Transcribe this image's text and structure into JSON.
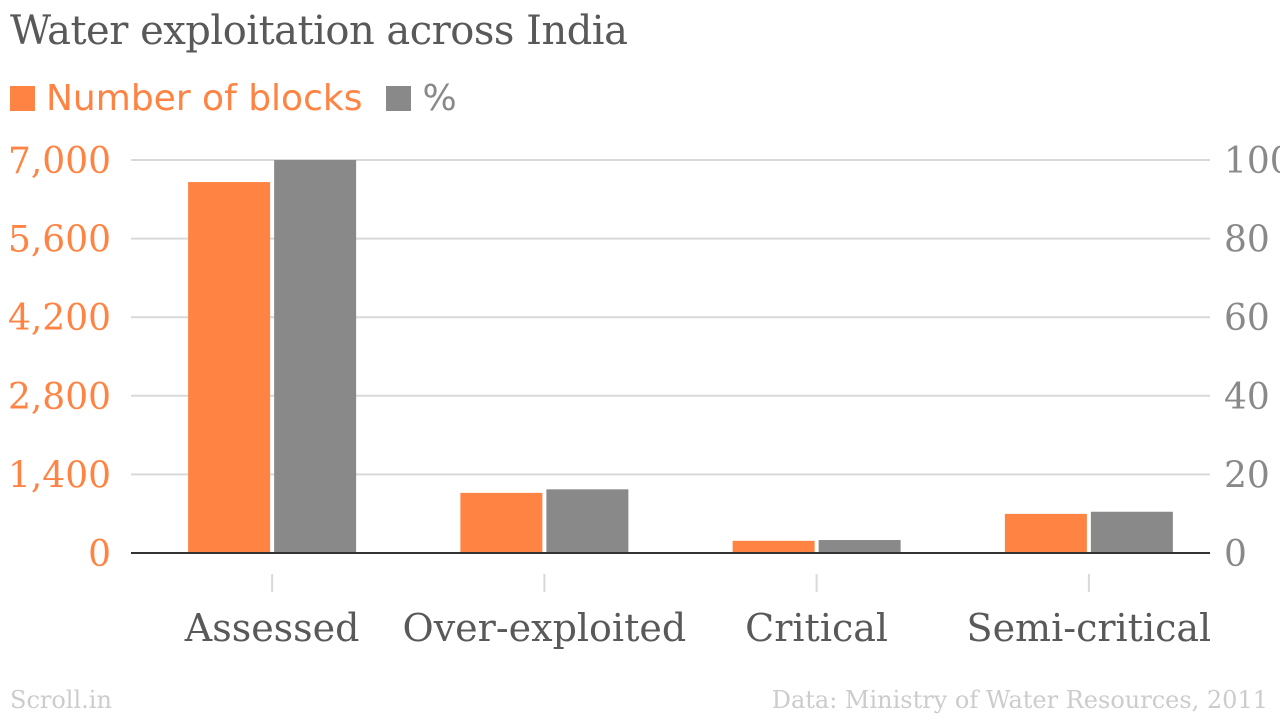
{
  "title": "Water exploitation across India",
  "source_left": "Scroll.in",
  "source_right": "Data: Ministry of Water Resources, 2011",
  "colors": {
    "blocks": "#ff8342",
    "percent": "#898989",
    "title": "#595959",
    "footer": "#cccccc",
    "grid": "#d9d9d9",
    "axis": "#333333"
  },
  "chart_data": {
    "type": "bar",
    "categories": [
      "Assessed",
      "Over-exploited",
      "Critical",
      "Semi-critical"
    ],
    "series": [
      {
        "name": "Number of blocks",
        "values": [
          6607,
          1071,
          217,
          697
        ],
        "axis": "left"
      },
      {
        "name": "%",
        "values": [
          100,
          16.2,
          3.3,
          10.5
        ],
        "axis": "right"
      }
    ],
    "y_left": {
      "ylim": [
        0,
        7000
      ],
      "ticks": [
        "0",
        "1,400",
        "2,800",
        "4,200",
        "5,600",
        "7,000"
      ],
      "tick_values": [
        0,
        1400,
        2800,
        4200,
        5600,
        7000
      ]
    },
    "y_right": {
      "ylim": [
        0,
        100
      ],
      "ticks": [
        "0",
        "20",
        "40",
        "60",
        "80",
        "100"
      ],
      "tick_values": [
        0,
        20,
        40,
        60,
        80,
        100
      ]
    },
    "grid": true,
    "legend_position": "top-left"
  }
}
